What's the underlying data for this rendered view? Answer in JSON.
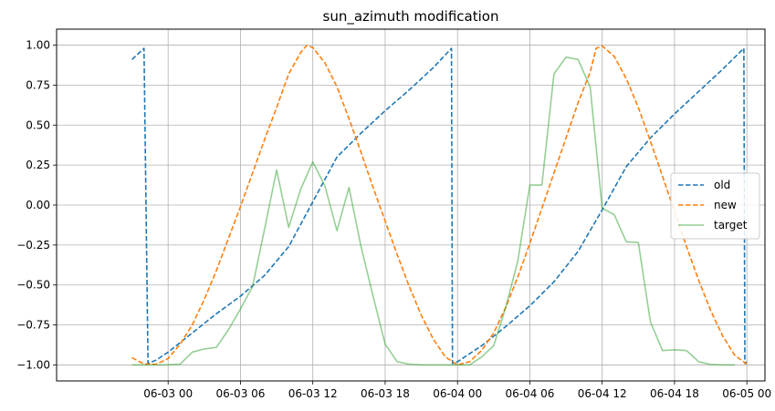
{
  "chart_data": {
    "type": "line",
    "title": "sun_azimuth modification",
    "xlabel": "",
    "ylabel": "",
    "x_unit": "hours",
    "xlim": [
      "06-02 14:45",
      "06-05 01:30"
    ],
    "ylim": [
      -1.1,
      1.1
    ],
    "grid": true,
    "legend_position": "center-right",
    "x_ticks": [
      {
        "at": "06-03 00:00",
        "label": "06-03 00"
      },
      {
        "at": "06-03 06:00",
        "label": "06-03 06"
      },
      {
        "at": "06-03 12:00",
        "label": "06-03 12"
      },
      {
        "at": "06-03 18:00",
        "label": "06-03 18"
      },
      {
        "at": "06-04 00:00",
        "label": "06-04 00"
      },
      {
        "at": "06-04 06:00",
        "label": "06-04 06"
      },
      {
        "at": "06-04 12:00",
        "label": "06-04 12"
      },
      {
        "at": "06-04 18:00",
        "label": "06-04 18"
      },
      {
        "at": "06-05 00:00",
        "label": "06-05 00"
      }
    ],
    "y_ticks": [
      {
        "value": 1.0,
        "label": "1.00"
      },
      {
        "value": 0.75,
        "label": "0.75"
      },
      {
        "value": 0.5,
        "label": "0.50"
      },
      {
        "value": 0.25,
        "label": "0.25"
      },
      {
        "value": 0.0,
        "label": "0.00"
      },
      {
        "value": -0.25,
        "label": "−0.25"
      },
      {
        "value": -0.5,
        "label": "−0.50"
      },
      {
        "value": -0.75,
        "label": "−0.75"
      },
      {
        "value": -1.0,
        "label": "−1.00"
      }
    ],
    "series": [
      {
        "name": "old",
        "color": "#1f77b4",
        "style": "dashed",
        "opacity": 1,
        "points": [
          [
            "06-02 21:00",
            0.91
          ],
          [
            "06-02 22:00",
            0.98
          ],
          [
            "06-02 22:20",
            -0.99
          ],
          [
            "06-02 23:00",
            -0.97
          ],
          [
            "06-03 00:00",
            -0.92
          ],
          [
            "06-03 02:00",
            -0.8
          ],
          [
            "06-03 04:00",
            -0.68
          ],
          [
            "06-03 06:00",
            -0.57
          ],
          [
            "06-03 08:00",
            -0.44
          ],
          [
            "06-03 10:00",
            -0.26
          ],
          [
            "06-03 12:00",
            0.02
          ],
          [
            "06-03 14:00",
            0.3
          ],
          [
            "06-03 16:00",
            0.45
          ],
          [
            "06-03 18:00",
            0.59
          ],
          [
            "06-03 20:00",
            0.72
          ],
          [
            "06-03 22:00",
            0.86
          ],
          [
            "06-03 23:30",
            0.98
          ],
          [
            "06-03 23:35",
            -0.99
          ],
          [
            "06-04 00:00",
            -0.98
          ],
          [
            "06-04 02:00",
            -0.88
          ],
          [
            "06-04 04:00",
            -0.76
          ],
          [
            "06-04 06:00",
            -0.63
          ],
          [
            "06-04 08:00",
            -0.48
          ],
          [
            "06-04 10:00",
            -0.29
          ],
          [
            "06-04 12:00",
            -0.03
          ],
          [
            "06-04 14:00",
            0.24
          ],
          [
            "06-04 16:00",
            0.42
          ],
          [
            "06-04 18:00",
            0.57
          ],
          [
            "06-04 20:00",
            0.71
          ],
          [
            "06-04 22:00",
            0.85
          ],
          [
            "06-04 23:45",
            0.98
          ],
          [
            "06-04 23:50",
            -0.99
          ],
          [
            "06-05 00:00",
            -0.98
          ]
        ]
      },
      {
        "name": "new",
        "color": "#ff7f0e",
        "style": "dashed",
        "opacity": 1,
        "points": [
          [
            "06-02 21:00",
            -0.955
          ],
          [
            "06-02 22:00",
            -0.994
          ],
          [
            "06-02 23:00",
            -0.996
          ],
          [
            "06-03 00:00",
            -0.96
          ],
          [
            "06-03 01:00",
            -0.87
          ],
          [
            "06-03 02:00",
            -0.75
          ],
          [
            "06-03 03:00",
            -0.59
          ],
          [
            "06-03 04:00",
            -0.41
          ],
          [
            "06-03 05:00",
            -0.21
          ],
          [
            "06-03 06:00",
            -0.01
          ],
          [
            "06-03 07:00",
            0.2
          ],
          [
            "06-03 08:00",
            0.41
          ],
          [
            "06-03 09:00",
            0.61
          ],
          [
            "06-03 10:00",
            0.82
          ],
          [
            "06-03 11:00",
            0.955
          ],
          [
            "06-03 11:30",
            0.999
          ],
          [
            "06-03 12:00",
            0.985
          ],
          [
            "06-03 13:00",
            0.89
          ],
          [
            "06-03 14:00",
            0.74
          ],
          [
            "06-03 15:00",
            0.54
          ],
          [
            "06-03 16:00",
            0.33
          ],
          [
            "06-03 17:00",
            0.11
          ],
          [
            "06-03 18:00",
            -0.1
          ],
          [
            "06-03 19:00",
            -0.31
          ],
          [
            "06-03 20:00",
            -0.51
          ],
          [
            "06-03 21:00",
            -0.69
          ],
          [
            "06-03 22:00",
            -0.84
          ],
          [
            "06-03 23:00",
            -0.95
          ],
          [
            "06-04 00:00",
            -1.0
          ],
          [
            "06-04 01:00",
            -0.98
          ],
          [
            "06-04 02:00",
            -0.91
          ],
          [
            "06-04 03:00",
            -0.8
          ],
          [
            "06-04 04:00",
            -0.64
          ],
          [
            "06-04 05:00",
            -0.45
          ],
          [
            "06-04 06:00",
            -0.24
          ],
          [
            "06-04 07:00",
            -0.02
          ],
          [
            "06-04 08:00",
            0.2
          ],
          [
            "06-04 09:00",
            0.42
          ],
          [
            "06-04 10:00",
            0.64
          ],
          [
            "06-04 11:00",
            0.83
          ],
          [
            "06-04 11:30",
            0.98
          ],
          [
            "06-04 12:00",
            0.995
          ],
          [
            "06-04 13:00",
            0.93
          ],
          [
            "06-04 14:00",
            0.79
          ],
          [
            "06-04 15:00",
            0.61
          ],
          [
            "06-04 16:00",
            0.4
          ],
          [
            "06-04 17:00",
            0.18
          ],
          [
            "06-04 18:00",
            -0.04
          ],
          [
            "06-04 19:00",
            -0.26
          ],
          [
            "06-04 20:00",
            -0.47
          ],
          [
            "06-04 21:00",
            -0.66
          ],
          [
            "06-04 22:00",
            -0.82
          ],
          [
            "06-04 23:00",
            -0.94
          ],
          [
            "06-05 00:00",
            -0.995
          ]
        ]
      },
      {
        "name": "target",
        "color": "#2ca02c",
        "style": "solid",
        "opacity": 0.5,
        "points": [
          [
            "06-02 21:00",
            -1.0
          ],
          [
            "06-02 23:00",
            -1.0
          ],
          [
            "06-03 00:00",
            -0.999
          ],
          [
            "06-03 01:00",
            -0.995
          ],
          [
            "06-03 02:00",
            -0.92
          ],
          [
            "06-03 03:00",
            -0.9
          ],
          [
            "06-03 04:00",
            -0.89
          ],
          [
            "06-03 05:00",
            -0.78
          ],
          [
            "06-03 06:00",
            -0.65
          ],
          [
            "06-03 07:00",
            -0.51
          ],
          [
            "06-03 08:00",
            -0.15
          ],
          [
            "06-03 09:00",
            0.22
          ],
          [
            "06-03 10:00",
            -0.14
          ],
          [
            "06-03 11:00",
            0.1
          ],
          [
            "06-03 12:00",
            0.27
          ],
          [
            "06-03 13:00",
            0.12
          ],
          [
            "06-03 14:00",
            -0.16
          ],
          [
            "06-03 15:00",
            0.11
          ],
          [
            "06-03 16:00",
            -0.26
          ],
          [
            "06-03 17:00",
            -0.57
          ],
          [
            "06-03 18:00",
            -0.87
          ],
          [
            "06-03 19:00",
            -0.98
          ],
          [
            "06-03 20:00",
            -0.995
          ],
          [
            "06-03 21:00",
            -1.0
          ],
          [
            "06-04 00:00",
            -1.0
          ],
          [
            "06-04 01:00",
            -1.0
          ],
          [
            "06-04 02:00",
            -0.95
          ],
          [
            "06-04 03:00",
            -0.88
          ],
          [
            "06-04 04:00",
            -0.64
          ],
          [
            "06-04 05:00",
            -0.35
          ],
          [
            "06-04 06:00",
            0.125
          ],
          [
            "06-04 07:00",
            0.125
          ],
          [
            "06-04 08:00",
            0.82
          ],
          [
            "06-04 09:00",
            0.925
          ],
          [
            "06-04 10:00",
            0.91
          ],
          [
            "06-04 11:00",
            0.74
          ],
          [
            "06-04 12:00",
            -0.02
          ],
          [
            "06-04 13:00",
            -0.06
          ],
          [
            "06-04 14:00",
            -0.23
          ],
          [
            "06-04 15:00",
            -0.235
          ],
          [
            "06-04 16:00",
            -0.73
          ],
          [
            "06-04 17:00",
            -0.91
          ],
          [
            "06-04 18:00",
            -0.905
          ],
          [
            "06-04 19:00",
            -0.91
          ],
          [
            "06-04 20:00",
            -0.98
          ],
          [
            "06-04 21:00",
            -0.997
          ],
          [
            "06-04 22:00",
            -1.0
          ],
          [
            "06-04 23:00",
            -1.0
          ]
        ]
      }
    ]
  }
}
